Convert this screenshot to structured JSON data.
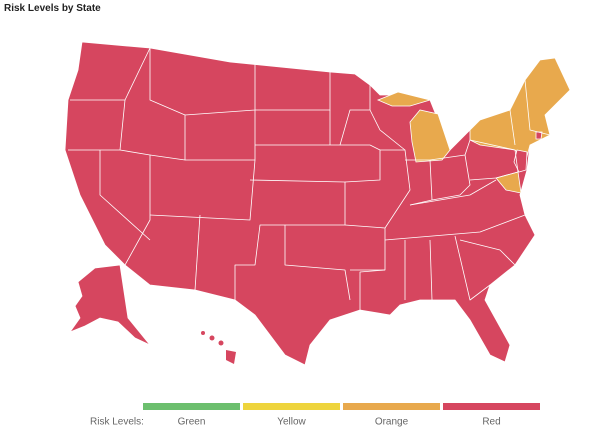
{
  "title": "Risk Levels by State",
  "legend": {
    "label": "Risk Levels:",
    "items": [
      {
        "name": "Green",
        "color": "#6cbf6e"
      },
      {
        "name": "Yellow",
        "color": "#eed43c"
      },
      {
        "name": "Orange",
        "color": "#e8a94d"
      },
      {
        "name": "Red",
        "color": "#d6465f"
      }
    ]
  }
}
